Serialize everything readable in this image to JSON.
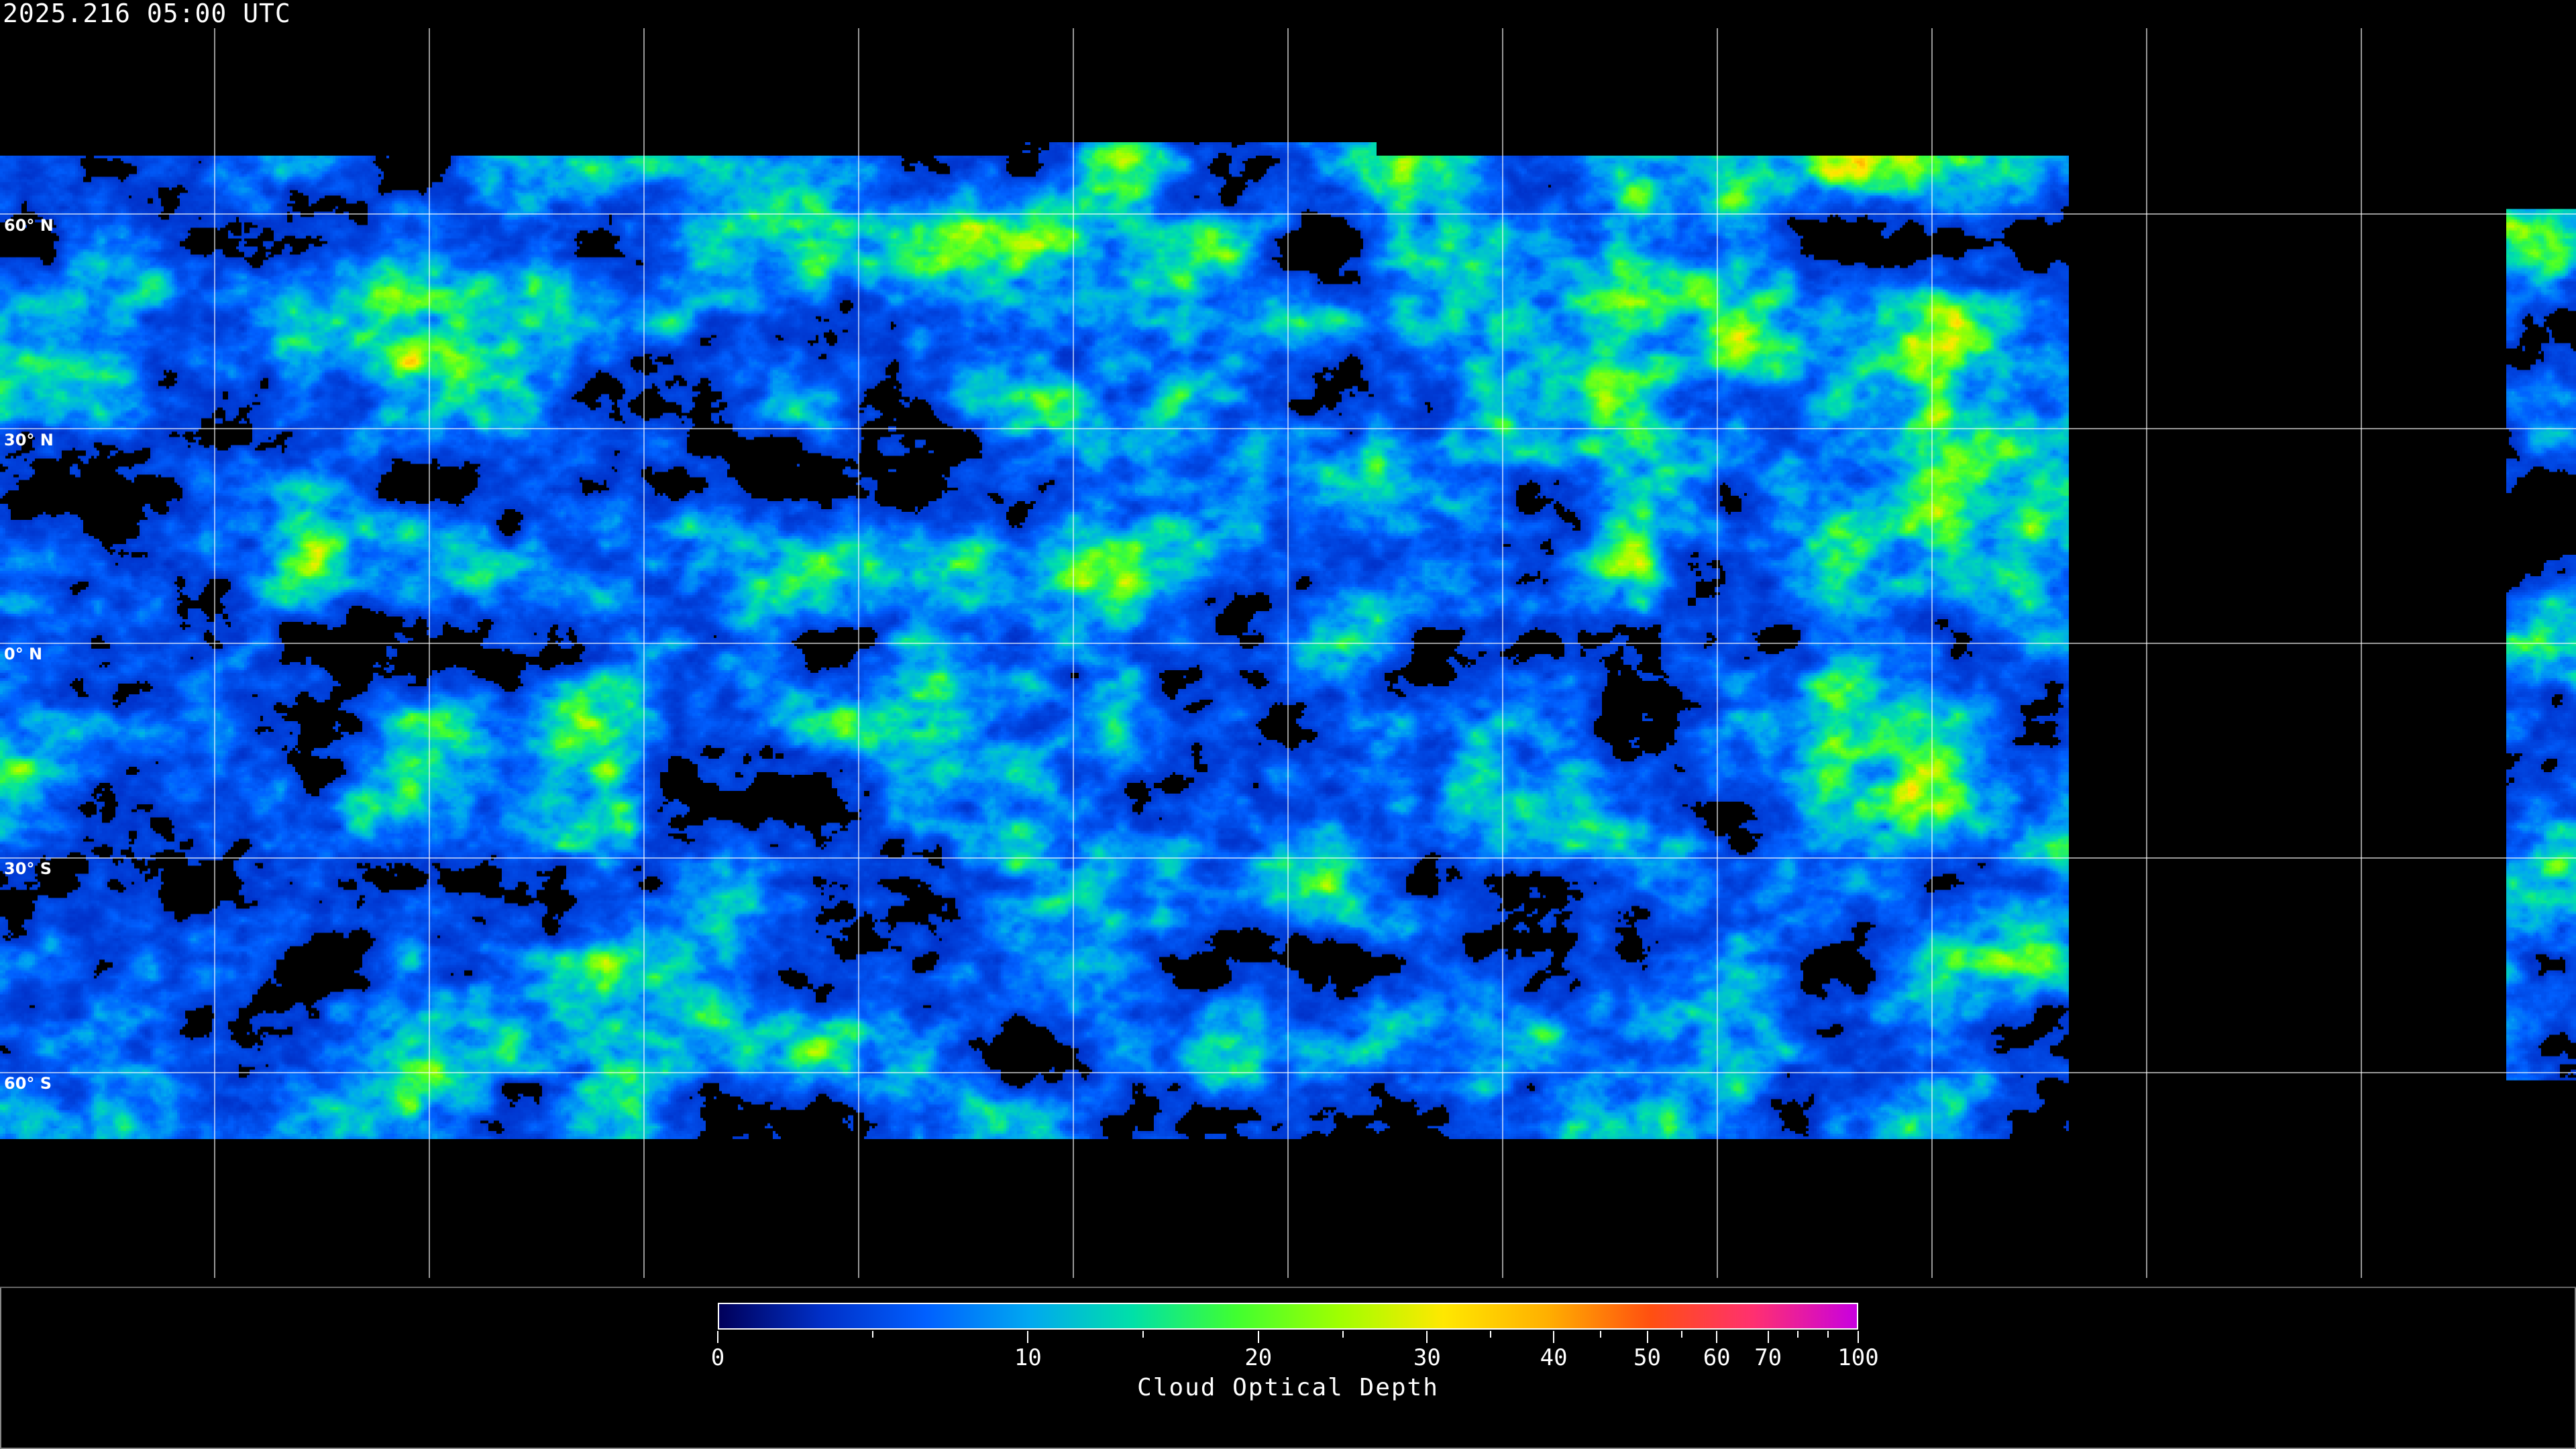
{
  "timestamp": "2025.216 05:00 UTC",
  "map": {
    "projection": "equirectangular",
    "lat_labels": [
      "60° N",
      "30° N",
      "0° N",
      "30° S",
      "60° S"
    ],
    "lat_values": [
      60,
      30,
      0,
      -30,
      -60
    ],
    "lon_grid_step_deg": 30,
    "background": "#000000",
    "grid_color": "#ffffff",
    "coastline_color": "#ffffff"
  },
  "colorbar": {
    "title": "Cloud Optical Depth",
    "range": [
      0,
      100
    ],
    "tick_labels": [
      "0",
      "10",
      "20",
      "30",
      "40",
      "50",
      "60",
      "70",
      "100"
    ],
    "tick_values": [
      0,
      10,
      20,
      30,
      40,
      50,
      60,
      70,
      100
    ],
    "minor_tick_values": [
      5,
      15,
      25,
      35,
      45,
      55,
      80,
      90
    ],
    "colors": [
      "#00005a",
      "#0030c8",
      "#0060ff",
      "#00a8f0",
      "#00e0a8",
      "#40ff30",
      "#a0ff00",
      "#ffe800",
      "#ffb000",
      "#ff5010",
      "#ff3070",
      "#c800e0"
    ]
  }
}
